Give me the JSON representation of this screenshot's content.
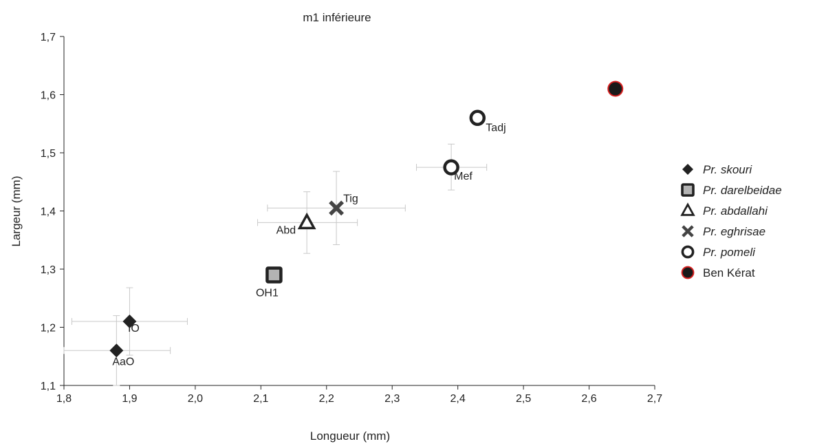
{
  "chart_data": {
    "type": "scatter",
    "title": "m1 inférieure",
    "xlabel": "Longueur (mm)",
    "ylabel": "Largeur (mm)",
    "xlim": [
      1.8,
      2.7
    ],
    "ylim": [
      1.1,
      1.7
    ],
    "x_ticks": [
      1.8,
      1.9,
      2.0,
      2.1,
      2.2,
      2.3,
      2.4,
      2.5,
      2.6,
      2.7
    ],
    "y_ticks": [
      1.1,
      1.2,
      1.3,
      1.4,
      1.5,
      1.6,
      1.7
    ],
    "x_tick_labels": [
      "1,8",
      "1,9",
      "2,0",
      "2,1",
      "2,2",
      "2,3",
      "2,4",
      "2,5",
      "2,6",
      "2,7"
    ],
    "y_tick_labels": [
      "1,1",
      "1,2",
      "1,3",
      "1,4",
      "1,5",
      "1,6",
      "1,7"
    ],
    "grid": false,
    "legend_position": "right",
    "series": [
      {
        "name": "Pr. skouri",
        "marker": "diamond",
        "italic": true,
        "color": "#222222",
        "points": [
          {
            "label": "IO",
            "x": 1.9,
            "y": 1.21,
            "x_err": [
              1.812,
              1.988
            ],
            "y_err": [
              1.152,
              1.268
            ]
          },
          {
            "label": "AaO",
            "x": 1.88,
            "y": 1.16,
            "x_err": [
              1.8,
              1.962
            ],
            "y_err": [
              1.1,
              1.22
            ]
          }
        ]
      },
      {
        "name": "Pr. darelbeidae",
        "marker": "square",
        "italic": true,
        "color": "#222222",
        "fill": "#b3b3b3",
        "points": [
          {
            "label": "OH1",
            "x": 2.12,
            "y": 1.29
          }
        ]
      },
      {
        "name": "Pr. abdallahi",
        "marker": "triangle",
        "italic": true,
        "color": "#222222",
        "points": [
          {
            "label": "Abd",
            "x": 2.17,
            "y": 1.38,
            "x_err": [
              2.095,
              2.247
            ],
            "y_err": [
              1.327,
              1.433
            ]
          }
        ]
      },
      {
        "name": "Pr. eghrisae",
        "marker": "cross",
        "italic": true,
        "color": "#444444",
        "points": [
          {
            "label": "Tig",
            "x": 2.215,
            "y": 1.405,
            "x_err": [
              2.11,
              2.32
            ],
            "y_err": [
              1.342,
              1.468
            ]
          }
        ]
      },
      {
        "name": "Pr. pomeli",
        "marker": "circle-open",
        "italic": true,
        "color": "#222222",
        "points": [
          {
            "label": "Mef",
            "x": 2.39,
            "y": 1.475,
            "x_err": [
              2.337,
              2.444
            ],
            "y_err": [
              1.436,
              1.515
            ]
          },
          {
            "label": "Tadj",
            "x": 2.43,
            "y": 1.56
          }
        ]
      },
      {
        "name": "Ben Kérat",
        "marker": "circle-filled",
        "italic": false,
        "color": "#1a1a1a",
        "edge": "#d62020",
        "points": [
          {
            "label": "",
            "x": 2.64,
            "y": 1.61
          }
        ]
      }
    ]
  }
}
